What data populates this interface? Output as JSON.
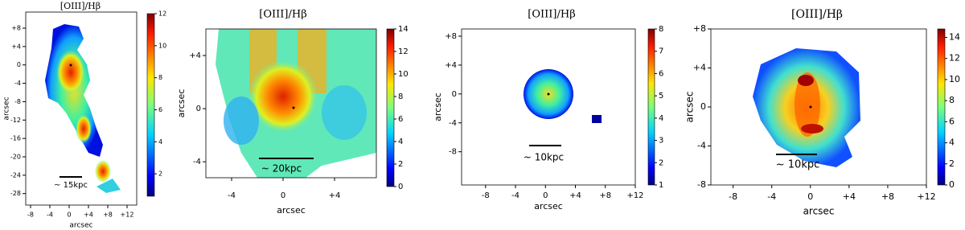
{
  "chart_data": [
    {
      "type": "heatmap",
      "title": "[OIII]/Hβ",
      "xlabel": "arcsec",
      "ylabel": "arcsec",
      "colormap": "jet",
      "xlim": [
        -9,
        14
      ],
      "ylim": [
        -30.5,
        11.5
      ],
      "xticks": [
        -8,
        -4,
        0,
        {
          "value": 4,
          "label": "+4"
        },
        {
          "value": 8,
          "label": "+8"
        },
        {
          "value": 12,
          "label": "+12"
        }
      ],
      "yticks": [
        {
          "value": 8,
          "label": "+8"
        },
        {
          "value": 4,
          "label": "+4"
        },
        0,
        -4,
        -8,
        -12,
        -16,
        -20,
        -24,
        -28
      ],
      "colorbar": {
        "clim": [
          0.6,
          12
        ],
        "ticks": [
          2,
          4,
          6,
          8,
          10,
          12
        ]
      },
      "scalebar": "~ 15kpc"
    },
    {
      "type": "heatmap",
      "title": "[OIII]/Hβ",
      "xlabel": "arcsec",
      "ylabel": "arcsec",
      "colormap": "jet",
      "xlim": [
        -6,
        7.25
      ],
      "ylim": [
        -5.2,
        6
      ],
      "xticks": [
        -4,
        0,
        {
          "value": 4,
          "label": "+4"
        }
      ],
      "yticks": [
        {
          "value": 4,
          "label": "+4"
        },
        0,
        -4
      ],
      "colorbar": {
        "clim": [
          0,
          14
        ],
        "ticks": [
          0,
          2,
          4,
          6,
          8,
          10,
          12,
          14
        ]
      },
      "scalebar": "~ 20kpc"
    },
    {
      "type": "heatmap",
      "title": "[OIII]/Hβ",
      "xlabel": "arcsec",
      "ylabel": "arcsec",
      "colormap": "jet",
      "xlim": [
        -11.2,
        12
      ],
      "ylim": [
        -12.6,
        9
      ],
      "xticks": [
        -8,
        -4,
        0,
        {
          "value": 4,
          "label": "+4"
        },
        {
          "value": 8,
          "label": "+8"
        },
        {
          "value": 12,
          "label": "+12"
        }
      ],
      "yticks": [
        {
          "value": 8,
          "label": "+8"
        },
        {
          "value": 4,
          "label": "+4"
        },
        0,
        -4,
        -8
      ],
      "colorbar": {
        "clim": [
          1,
          8
        ],
        "ticks": [
          1,
          2,
          3,
          4,
          5,
          6,
          7,
          8
        ]
      },
      "scalebar": "~ 10kpc"
    },
    {
      "type": "heatmap",
      "title": "[OIII]/Hβ",
      "xlabel": "arcsec",
      "ylabel": "arcsec",
      "colormap": "jet",
      "xlim": [
        -10.3,
        12
      ],
      "ylim": [
        -8,
        8
      ],
      "xticks": [
        -8,
        -4,
        0,
        {
          "value": 4,
          "label": "+4"
        },
        {
          "value": 8,
          "label": "+8"
        },
        {
          "value": 12,
          "label": "+12"
        }
      ],
      "yticks": [
        {
          "value": 8,
          "label": "+8"
        },
        {
          "value": 4,
          "label": "+4"
        },
        0,
        -4,
        -8
      ],
      "colorbar": {
        "clim": [
          0,
          14.8
        ],
        "ticks": [
          0,
          2,
          4,
          6,
          8,
          10,
          12,
          14
        ]
      },
      "scalebar": "~ 10kpc"
    }
  ]
}
